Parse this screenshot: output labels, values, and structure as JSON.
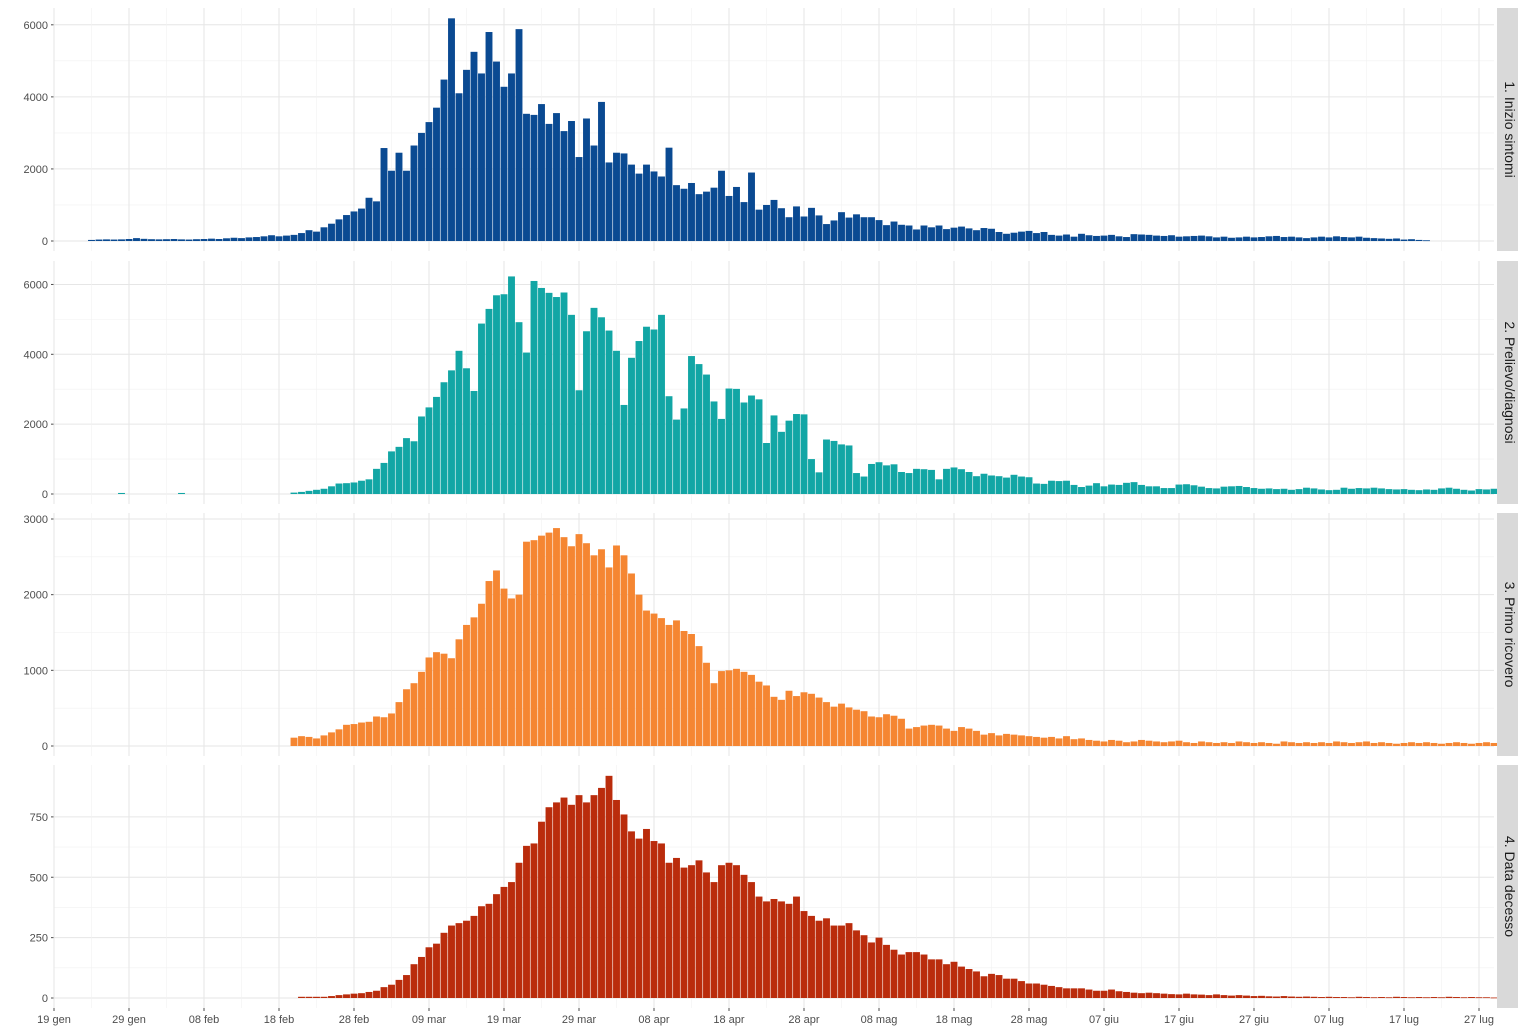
{
  "chart_data": {
    "type": "bar",
    "layout": "faceted-vertical",
    "xaxis": {
      "type": "date",
      "range": [
        "2020-01-19",
        "2020-07-29"
      ],
      "tick_dates": [
        "2020-01-19",
        "2020-01-29",
        "2020-02-08",
        "2020-02-18",
        "2020-02-28",
        "2020-03-09",
        "2020-03-19",
        "2020-03-29",
        "2020-04-08",
        "2020-04-18",
        "2020-04-28",
        "2020-05-08",
        "2020-05-18",
        "2020-05-28",
        "2020-06-07",
        "2020-06-17",
        "2020-06-27",
        "2020-07-07",
        "2020-07-17",
        "2020-07-27"
      ],
      "tick_labels": [
        "19 gen",
        "29 gen",
        "08 feb",
        "18 feb",
        "28 feb",
        "09 mar",
        "19 mar",
        "29 mar",
        "08 apr",
        "18 apr",
        "28 apr",
        "08 mag",
        "18 mag",
        "28 mag",
        "07 giu",
        "17 giu",
        "27 giu",
        "07 lug",
        "17 lug",
        "27 lug"
      ]
    },
    "grid": true,
    "legend": "none",
    "panels": [
      {
        "strip_label": "1. Inizio sintomi",
        "color": "#0a4a92",
        "ylim": [
          0,
          6300
        ],
        "yticks": [
          0,
          2000,
          4000,
          6000
        ],
        "ytick_labels": [
          "0",
          "2000",
          "4000",
          "6000"
        ],
        "start_date": "2020-01-24",
        "values": [
          30,
          40,
          45,
          40,
          45,
          55,
          80,
          60,
          50,
          45,
          50,
          55,
          45,
          40,
          50,
          55,
          65,
          55,
          75,
          90,
          80,
          100,
          110,
          130,
          160,
          130,
          150,
          170,
          220,
          300,
          260,
          380,
          480,
          600,
          720,
          820,
          900,
          1200,
          1100,
          2580,
          1950,
          2450,
          1950,
          2650,
          3000,
          3300,
          3700,
          4480,
          6180,
          4100,
          4750,
          5250,
          4650,
          5800,
          4980,
          4280,
          4650,
          5880,
          3530,
          3500,
          3800,
          3250,
          3550,
          3050,
          3330,
          2330,
          3400,
          2650,
          3860,
          2180,
          2450,
          2430,
          2120,
          1870,
          2120,
          1930,
          1790,
          2590,
          1550,
          1450,
          1610,
          1300,
          1370,
          1480,
          1950,
          1250,
          1500,
          1080,
          1900,
          870,
          1000,
          1140,
          910,
          660,
          960,
          680,
          920,
          710,
          470,
          570,
          800,
          650,
          740,
          660,
          660,
          580,
          440,
          540,
          450,
          430,
          320,
          430,
          380,
          430,
          330,
          370,
          400,
          350,
          300,
          360,
          340,
          250,
          200,
          230,
          260,
          280,
          220,
          250,
          170,
          150,
          180,
          120,
          200,
          160,
          140,
          150,
          170,
          130,
          110,
          190,
          180,
          170,
          150,
          140,
          160,
          120,
          130,
          140,
          150,
          130,
          100,
          120,
          90,
          100,
          120,
          100,
          110,
          130,
          140,
          110,
          120,
          100,
          80,
          100,
          120,
          100,
          130,
          110,
          100,
          120,
          90,
          80,
          70,
          60,
          70,
          40,
          50,
          30,
          20
        ]
      },
      {
        "strip_label": "2. Prelievo/diagnosi",
        "color": "#12a6a5",
        "ylim": [
          0,
          6500
        ],
        "yticks": [
          0,
          2000,
          4000,
          6000
        ],
        "ytick_labels": [
          "0",
          "2000",
          "4000",
          "6000"
        ],
        "start_date": "2020-01-24",
        "values": [
          0,
          0,
          0,
          0,
          0,
          0,
          0,
          0,
          0,
          0,
          0,
          0,
          0,
          0,
          0,
          0,
          0,
          0,
          0,
          0,
          0,
          0,
          0,
          0,
          0,
          0,
          0,
          0,
          0,
          0,
          0,
          0,
          0,
          0,
          0,
          0,
          0,
          0,
          0,
          0,
          0,
          0,
          0,
          0,
          0,
          0,
          0,
          0,
          0,
          0,
          0,
          0,
          0,
          0,
          0,
          0,
          0,
          0,
          0,
          0,
          0,
          0,
          0,
          0,
          0,
          0,
          0,
          0,
          0,
          0,
          0,
          0,
          0,
          0,
          0,
          0,
          0,
          0,
          0,
          0,
          0,
          0,
          0,
          0,
          0,
          0,
          0,
          0,
          0,
          0,
          0,
          0,
          0,
          0,
          0,
          0,
          0,
          0,
          0,
          0,
          0,
          0,
          0,
          0,
          0,
          0,
          0,
          0,
          0,
          0,
          0,
          0,
          0,
          0,
          0,
          0,
          0,
          0,
          0,
          0,
          0,
          0,
          0,
          0,
          0,
          0,
          0,
          0,
          0,
          0,
          0,
          0,
          0,
          0,
          0,
          0,
          0,
          0,
          0,
          0,
          0,
          0,
          0,
          0,
          0,
          0,
          0,
          0,
          0,
          0,
          0,
          0,
          0,
          0,
          0,
          0,
          0,
          0,
          0,
          0,
          0,
          0,
          0,
          0,
          0,
          0,
          0,
          0,
          0,
          0,
          0,
          0,
          0,
          0,
          0,
          0,
          0,
          0,
          0,
          0,
          0,
          0
        ],
        "bars": [
          {
            "date": "2020-01-28",
            "value": 30
          },
          {
            "date": "2020-02-05",
            "value": 30
          }
        ],
        "series_start_date": "2020-02-20",
        "series_values": [
          40,
          60,
          90,
          120,
          150,
          220,
          300,
          310,
          330,
          380,
          420,
          720,
          890,
          1220,
          1350,
          1600,
          1510,
          2220,
          2480,
          2780,
          3200,
          3540,
          4100,
          3600,
          2950,
          4880,
          5300,
          5690,
          5720,
          6230,
          4920,
          4050,
          6100,
          5900,
          5760,
          5640,
          5770,
          5130,
          2970,
          4660,
          5330,
          5060,
          4680,
          4100,
          2550,
          3900,
          4380,
          4790,
          4710,
          5130,
          2800,
          2130,
          2450,
          3950,
          3720,
          3420,
          2650,
          2150,
          3020,
          3010,
          2620,
          2820,
          2710,
          1460,
          2250,
          1780,
          2100,
          2290,
          2280,
          1000,
          620,
          1560,
          1520,
          1420,
          1390,
          600,
          500,
          860,
          910,
          820,
          850,
          630,
          600,
          720,
          710,
          690,
          420,
          720,
          760,
          710,
          630,
          510,
          580,
          530,
          510,
          470,
          550,
          500,
          480,
          300,
          290,
          380,
          370,
          380,
          260,
          200,
          240,
          310,
          220,
          270,
          260,
          320,
          340,
          260,
          220,
          220,
          170,
          170,
          270,
          280,
          250,
          210,
          170,
          160,
          210,
          220,
          230,
          200,
          170,
          150,
          160,
          140,
          150,
          120,
          140,
          180,
          160,
          130,
          110,
          120,
          180,
          150,
          170,
          160,
          180,
          160,
          140,
          130,
          140,
          120,
          110,
          130,
          120,
          160,
          180,
          150,
          120,
          100,
          140,
          130,
          150,
          110,
          120,
          150,
          140,
          130,
          160,
          120,
          100,
          150,
          140,
          120,
          150,
          170,
          150,
          90,
          60
        ]
      },
      {
        "strip_label": "3. Primo ricovero",
        "color": "#f58632",
        "ylim": [
          0,
          3000
        ],
        "yticks": [
          0,
          1000,
          2000,
          3000
        ],
        "ytick_labels": [
          "0",
          "1000",
          "2000",
          "3000"
        ],
        "start_date": "2020-02-20",
        "values": [
          110,
          130,
          120,
          100,
          140,
          180,
          220,
          280,
          290,
          310,
          320,
          390,
          380,
          430,
          580,
          750,
          830,
          980,
          1170,
          1240,
          1220,
          1160,
          1410,
          1600,
          1700,
          1880,
          2180,
          2320,
          2080,
          1950,
          2000,
          2700,
          2720,
          2780,
          2820,
          2880,
          2760,
          2640,
          2800,
          2680,
          2520,
          2600,
          2360,
          2650,
          2520,
          2280,
          2000,
          1790,
          1750,
          1690,
          1600,
          1660,
          1520,
          1480,
          1320,
          1100,
          830,
          990,
          1000,
          1020,
          980,
          940,
          850,
          800,
          650,
          610,
          730,
          660,
          710,
          690,
          640,
          580,
          520,
          560,
          510,
          480,
          460,
          390,
          380,
          420,
          400,
          360,
          230,
          250,
          270,
          280,
          270,
          230,
          200,
          250,
          230,
          200,
          150,
          170,
          140,
          160,
          150,
          140,
          130,
          120,
          110,
          120,
          100,
          130,
          90,
          100,
          80,
          70,
          60,
          80,
          70,
          50,
          60,
          80,
          70,
          60,
          50,
          60,
          70,
          50,
          40,
          60,
          50,
          40,
          50,
          40,
          60,
          50,
          40,
          50,
          40,
          30,
          60,
          50,
          40,
          50,
          40,
          50,
          40,
          60,
          50,
          40,
          50,
          60,
          40,
          50,
          40,
          30,
          40,
          50,
          40,
          50,
          40,
          30,
          40,
          50,
          40,
          30,
          40,
          50,
          40,
          50,
          40,
          30,
          50,
          40,
          60,
          50,
          40,
          30,
          20
        ]
      },
      {
        "strip_label": "4. Data decesso",
        "color": "#ba2c0c",
        "ylim": [
          0,
          940
        ],
        "yticks": [
          0,
          250,
          500,
          750
        ],
        "ytick_labels": [
          "0",
          "250",
          "500",
          "750"
        ],
        "start_date": "2020-02-21",
        "values": [
          5,
          5,
          5,
          5,
          8,
          12,
          15,
          18,
          20,
          25,
          30,
          45,
          55,
          75,
          95,
          140,
          170,
          210,
          225,
          270,
          300,
          310,
          320,
          340,
          380,
          390,
          430,
          460,
          480,
          560,
          630,
          640,
          730,
          790,
          810,
          830,
          800,
          840,
          810,
          840,
          870,
          920,
          820,
          760,
          690,
          660,
          700,
          650,
          640,
          560,
          580,
          540,
          550,
          570,
          520,
          480,
          550,
          560,
          550,
          510,
          480,
          420,
          400,
          410,
          400,
          390,
          420,
          360,
          340,
          320,
          330,
          300,
          300,
          310,
          280,
          260,
          230,
          250,
          220,
          200,
          180,
          190,
          190,
          180,
          160,
          160,
          140,
          150,
          130,
          120,
          110,
          90,
          100,
          95,
          80,
          80,
          70,
          60,
          60,
          55,
          50,
          45,
          40,
          40,
          40,
          35,
          30,
          30,
          35,
          28,
          25,
          22,
          20,
          22,
          20,
          18,
          16,
          15,
          18,
          15,
          14,
          12,
          15,
          12,
          10,
          12,
          10,
          8,
          9,
          7,
          6,
          8,
          6,
          5,
          6,
          5,
          4,
          5,
          4,
          4,
          3,
          5,
          4,
          3,
          4,
          3,
          5,
          4,
          3,
          4,
          3,
          4,
          3,
          5,
          4,
          3,
          4,
          3,
          3,
          2,
          3,
          2,
          3,
          2,
          2,
          3,
          2,
          2,
          1,
          2,
          1
        ]
      }
    ]
  }
}
